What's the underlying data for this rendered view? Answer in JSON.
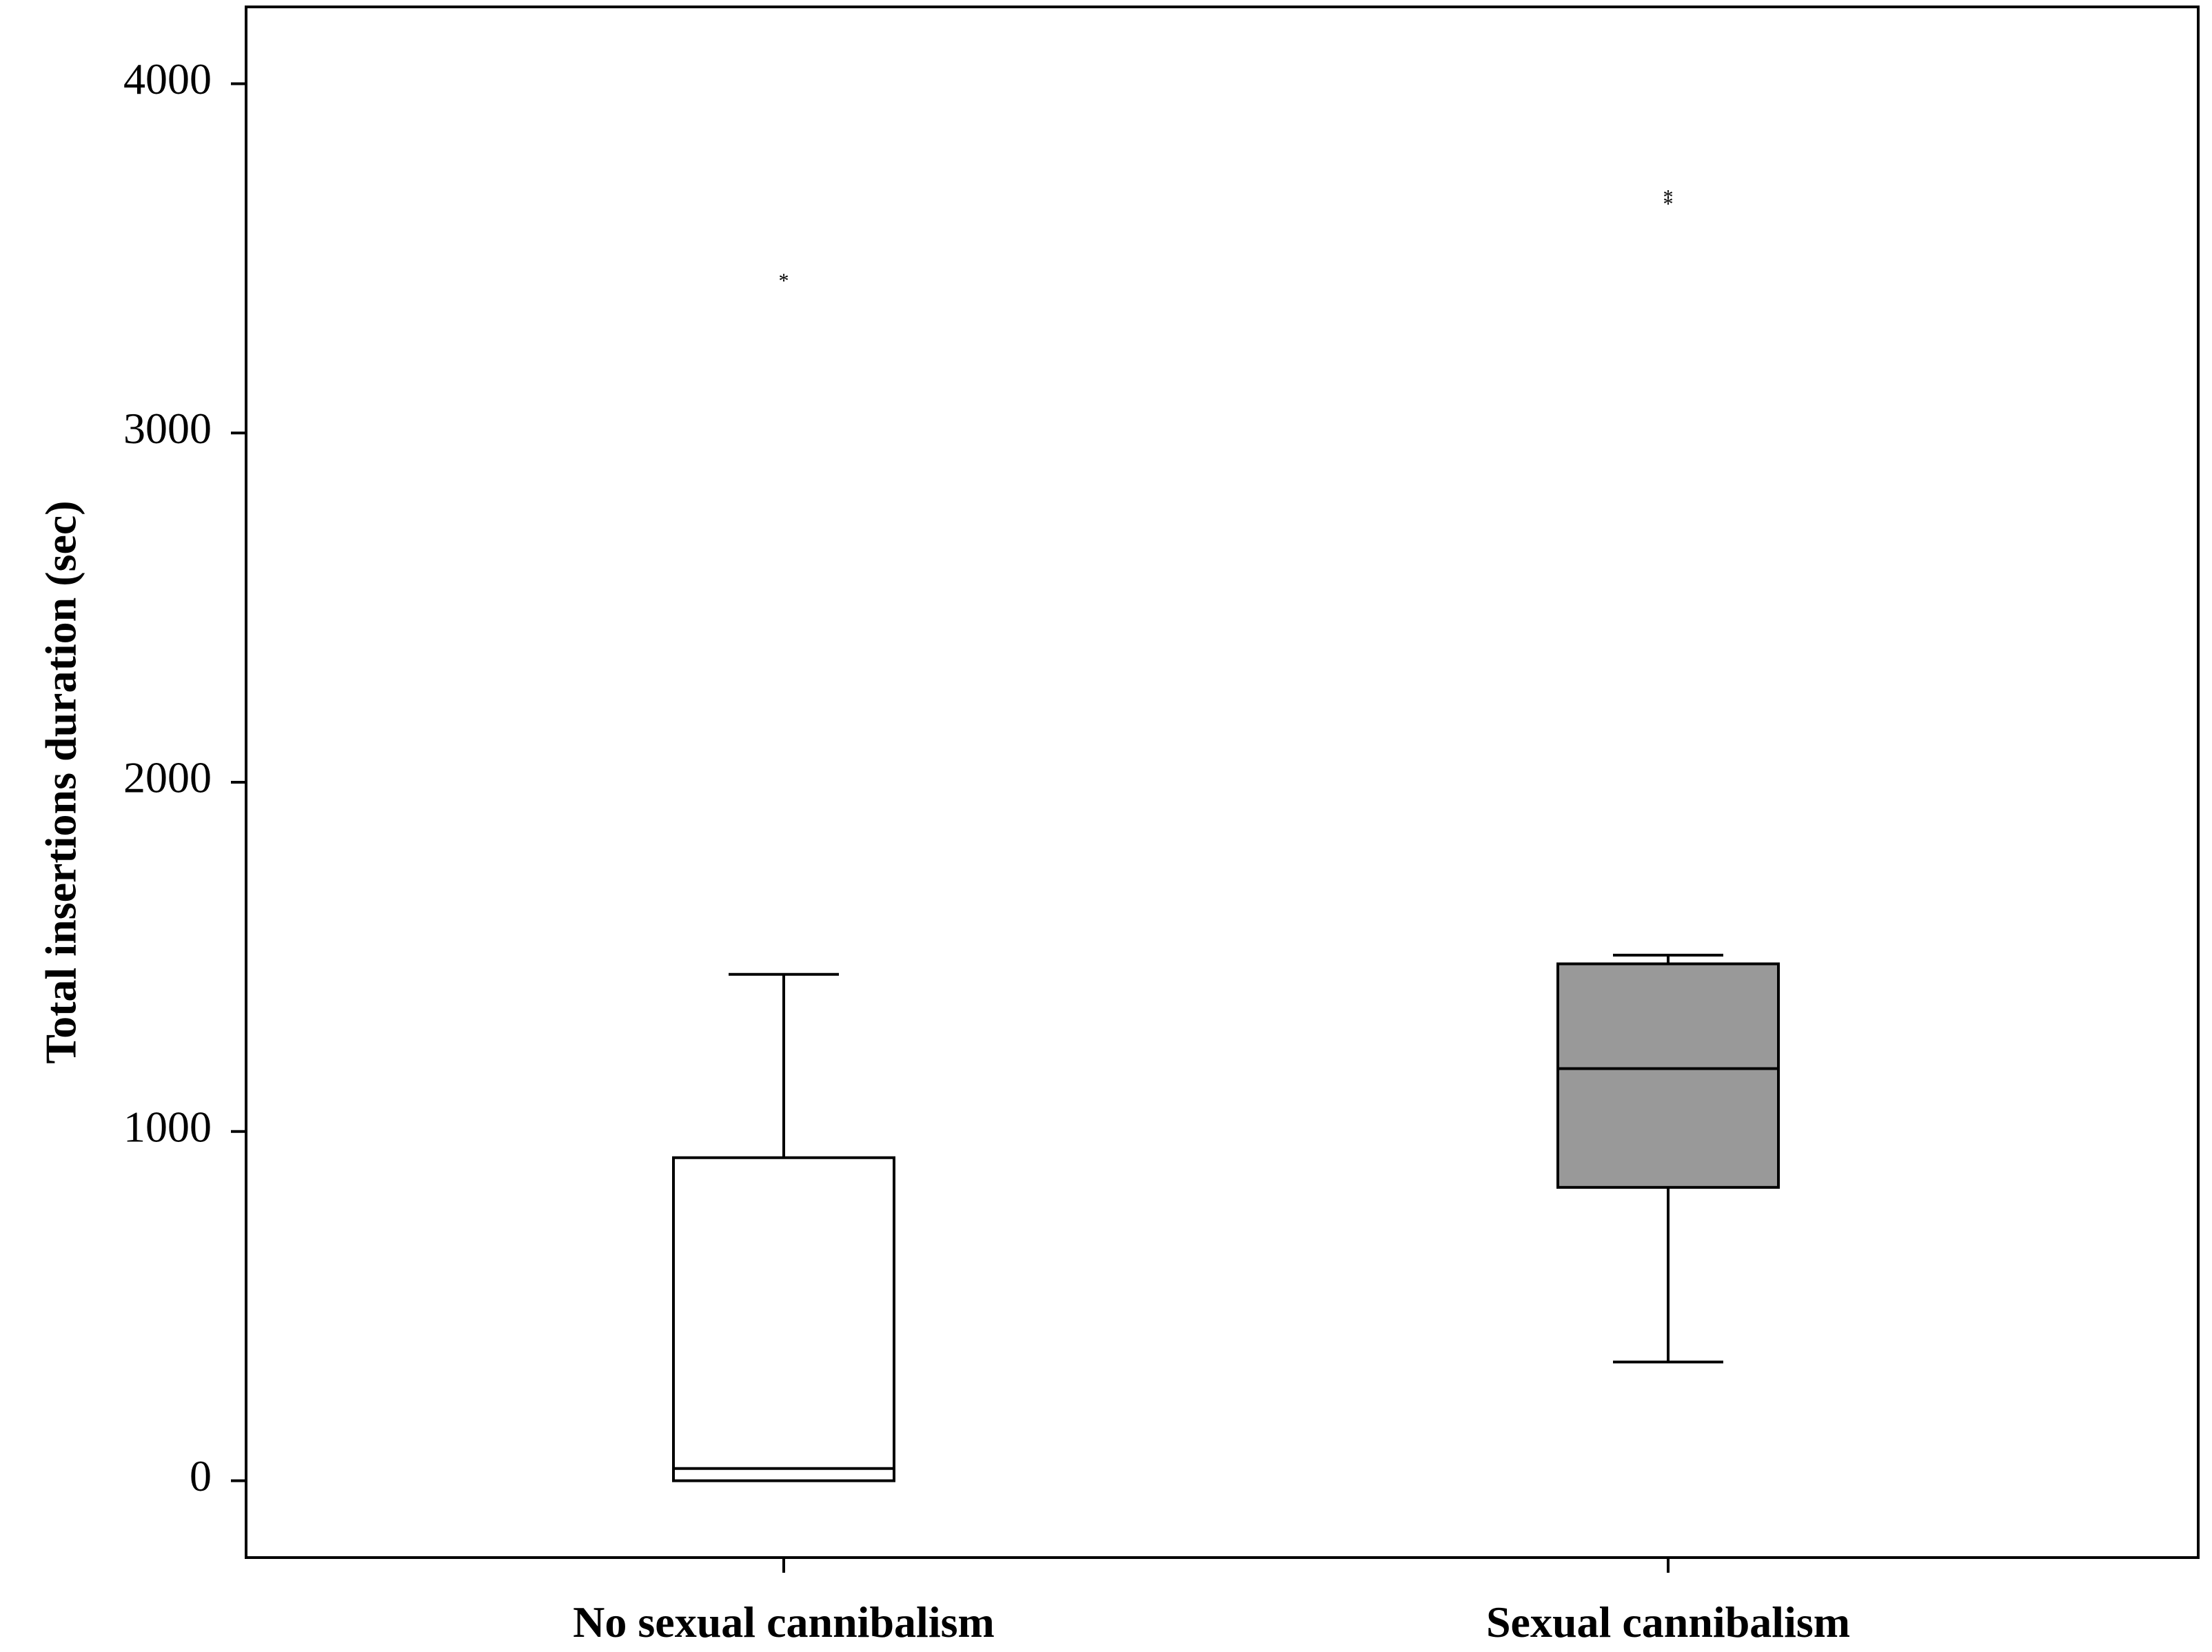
{
  "chart_data": {
    "type": "box",
    "title": "",
    "xlabel": "",
    "ylabel": "Total insertions duration (sec)",
    "ylim": [
      -220,
      4220
    ],
    "yticks": [
      0,
      1000,
      2000,
      3000,
      4000
    ],
    "ytick_labels": [
      "0",
      "1000",
      "2000",
      "3000",
      "4000"
    ],
    "grid": false,
    "legend": "none",
    "categories": [
      "No sexual cannibalism",
      "Sexual cannibalism"
    ],
    "boxes": [
      {
        "category": "No sexual cannibalism",
        "whisker_low": 0,
        "q1": 0,
        "median": 35,
        "q3": 925,
        "whisker_high": 1450,
        "outliers": [
          3430
        ],
        "fill": "#ffffff"
      },
      {
        "category": "Sexual cannibalism",
        "whisker_low": 340,
        "q1": 840,
        "median": 1180,
        "q3": 1480,
        "whisker_high": 1505,
        "outliers": [
          3650,
          3670
        ],
        "fill": "#999999"
      }
    ]
  }
}
